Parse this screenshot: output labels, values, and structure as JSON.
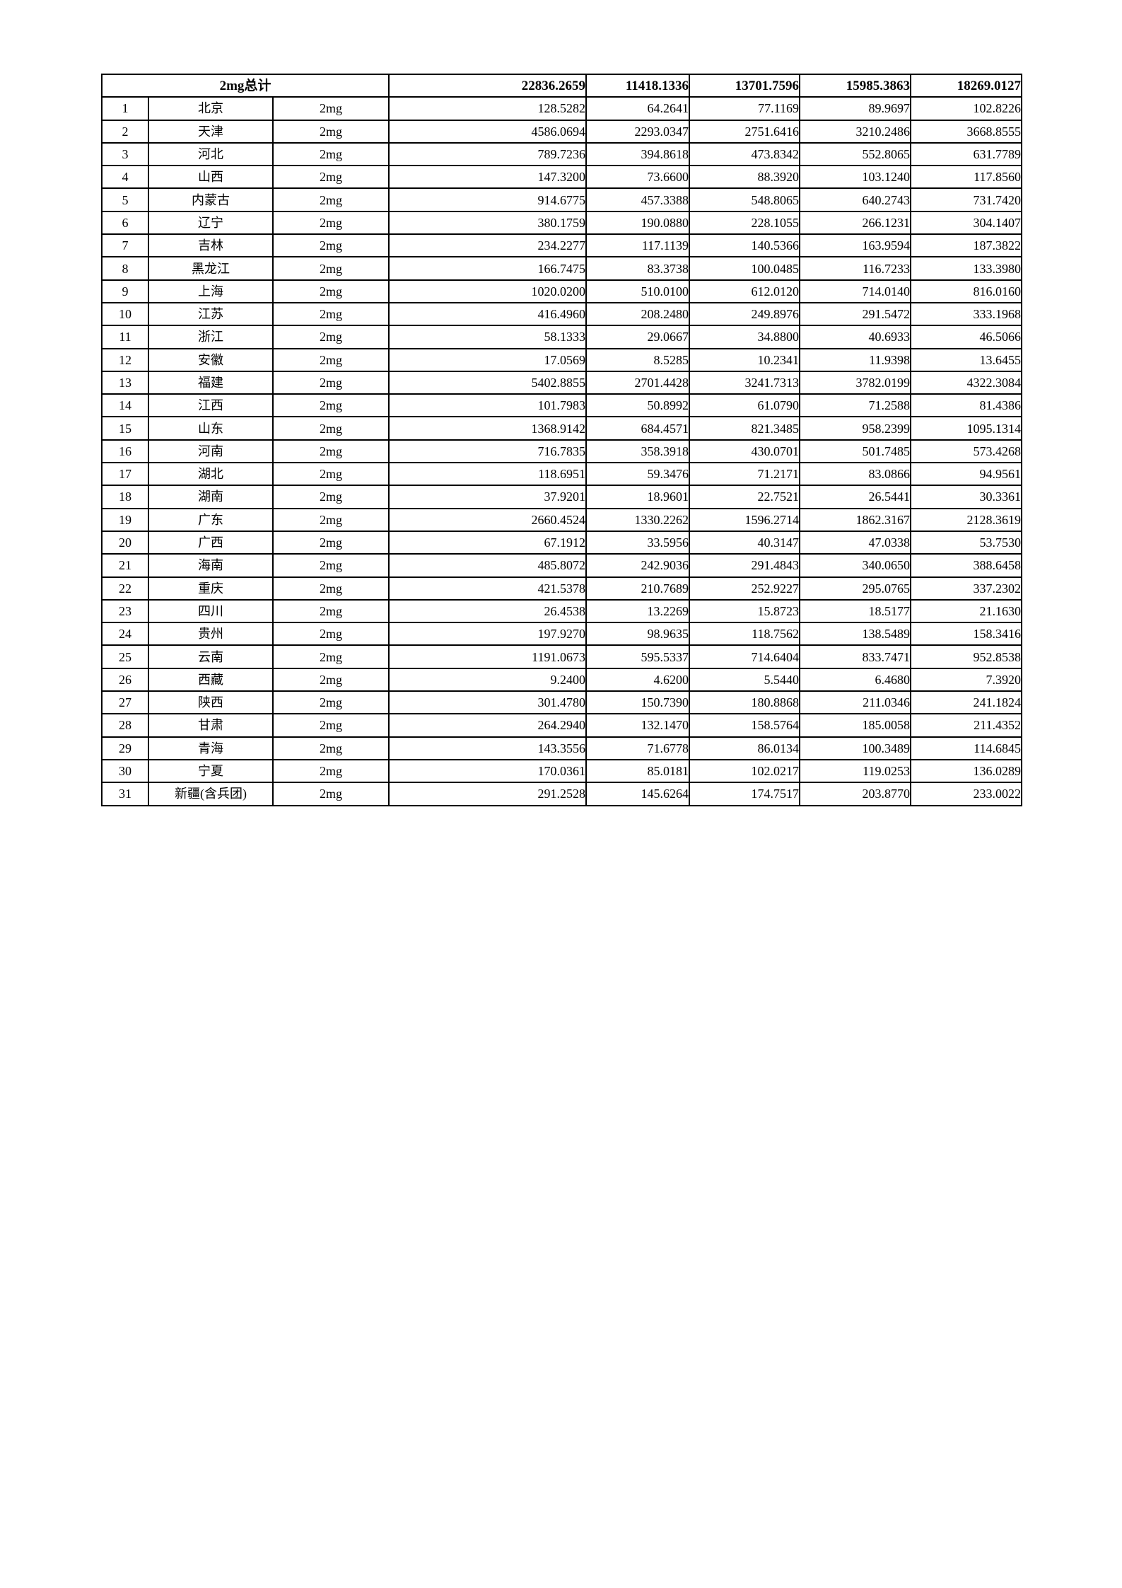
{
  "header": {
    "label": "2mg总计",
    "totals": [
      "22836.2659",
      "11418.1336",
      "13701.7596",
      "15985.3863",
      "18269.0127"
    ]
  },
  "table": {
    "rows": [
      {
        "index": "1",
        "province": "北京",
        "spec": "2mg",
        "values": [
          "128.5282",
          "64.2641",
          "77.1169",
          "89.9697",
          "102.8226"
        ]
      },
      {
        "index": "2",
        "province": "天津",
        "spec": "2mg",
        "values": [
          "4586.0694",
          "2293.0347",
          "2751.6416",
          "3210.2486",
          "3668.8555"
        ]
      },
      {
        "index": "3",
        "province": "河北",
        "spec": "2mg",
        "values": [
          "789.7236",
          "394.8618",
          "473.8342",
          "552.8065",
          "631.7789"
        ]
      },
      {
        "index": "4",
        "province": "山西",
        "spec": "2mg",
        "values": [
          "147.3200",
          "73.6600",
          "88.3920",
          "103.1240",
          "117.8560"
        ]
      },
      {
        "index": "5",
        "province": "内蒙古",
        "spec": "2mg",
        "values": [
          "914.6775",
          "457.3388",
          "548.8065",
          "640.2743",
          "731.7420"
        ]
      },
      {
        "index": "6",
        "province": "辽宁",
        "spec": "2mg",
        "values": [
          "380.1759",
          "190.0880",
          "228.1055",
          "266.1231",
          "304.1407"
        ]
      },
      {
        "index": "7",
        "province": "吉林",
        "spec": "2mg",
        "values": [
          "234.2277",
          "117.1139",
          "140.5366",
          "163.9594",
          "187.3822"
        ]
      },
      {
        "index": "8",
        "province": "黑龙江",
        "spec": "2mg",
        "values": [
          "166.7475",
          "83.3738",
          "100.0485",
          "116.7233",
          "133.3980"
        ]
      },
      {
        "index": "9",
        "province": "上海",
        "spec": "2mg",
        "values": [
          "1020.0200",
          "510.0100",
          "612.0120",
          "714.0140",
          "816.0160"
        ]
      },
      {
        "index": "10",
        "province": "江苏",
        "spec": "2mg",
        "values": [
          "416.4960",
          "208.2480",
          "249.8976",
          "291.5472",
          "333.1968"
        ]
      },
      {
        "index": "11",
        "province": "浙江",
        "spec": "2mg",
        "values": [
          "58.1333",
          "29.0667",
          "34.8800",
          "40.6933",
          "46.5066"
        ]
      },
      {
        "index": "12",
        "province": "安徽",
        "spec": "2mg",
        "values": [
          "17.0569",
          "8.5285",
          "10.2341",
          "11.9398",
          "13.6455"
        ]
      },
      {
        "index": "13",
        "province": "福建",
        "spec": "2mg",
        "values": [
          "5402.8855",
          "2701.4428",
          "3241.7313",
          "3782.0199",
          "4322.3084"
        ]
      },
      {
        "index": "14",
        "province": "江西",
        "spec": "2mg",
        "values": [
          "101.7983",
          "50.8992",
          "61.0790",
          "71.2588",
          "81.4386"
        ]
      },
      {
        "index": "15",
        "province": "山东",
        "spec": "2mg",
        "values": [
          "1368.9142",
          "684.4571",
          "821.3485",
          "958.2399",
          "1095.1314"
        ]
      },
      {
        "index": "16",
        "province": "河南",
        "spec": "2mg",
        "values": [
          "716.7835",
          "358.3918",
          "430.0701",
          "501.7485",
          "573.4268"
        ]
      },
      {
        "index": "17",
        "province": "湖北",
        "spec": "2mg",
        "values": [
          "118.6951",
          "59.3476",
          "71.2171",
          "83.0866",
          "94.9561"
        ]
      },
      {
        "index": "18",
        "province": "湖南",
        "spec": "2mg",
        "values": [
          "37.9201",
          "18.9601",
          "22.7521",
          "26.5441",
          "30.3361"
        ]
      },
      {
        "index": "19",
        "province": "广东",
        "spec": "2mg",
        "values": [
          "2660.4524",
          "1330.2262",
          "1596.2714",
          "1862.3167",
          "2128.3619"
        ]
      },
      {
        "index": "20",
        "province": "广西",
        "spec": "2mg",
        "values": [
          "67.1912",
          "33.5956",
          "40.3147",
          "47.0338",
          "53.7530"
        ]
      },
      {
        "index": "21",
        "province": "海南",
        "spec": "2mg",
        "values": [
          "485.8072",
          "242.9036",
          "291.4843",
          "340.0650",
          "388.6458"
        ]
      },
      {
        "index": "22",
        "province": "重庆",
        "spec": "2mg",
        "values": [
          "421.5378",
          "210.7689",
          "252.9227",
          "295.0765",
          "337.2302"
        ]
      },
      {
        "index": "23",
        "province": "四川",
        "spec": "2mg",
        "values": [
          "26.4538",
          "13.2269",
          "15.8723",
          "18.5177",
          "21.1630"
        ]
      },
      {
        "index": "24",
        "province": "贵州",
        "spec": "2mg",
        "values": [
          "197.9270",
          "98.9635",
          "118.7562",
          "138.5489",
          "158.3416"
        ]
      },
      {
        "index": "25",
        "province": "云南",
        "spec": "2mg",
        "values": [
          "1191.0673",
          "595.5337",
          "714.6404",
          "833.7471",
          "952.8538"
        ]
      },
      {
        "index": "26",
        "province": "西藏",
        "spec": "2mg",
        "values": [
          "9.2400",
          "4.6200",
          "5.5440",
          "6.4680",
          "7.3920"
        ]
      },
      {
        "index": "27",
        "province": "陕西",
        "spec": "2mg",
        "values": [
          "301.4780",
          "150.7390",
          "180.8868",
          "211.0346",
          "241.1824"
        ]
      },
      {
        "index": "28",
        "province": "甘肃",
        "spec": "2mg",
        "values": [
          "264.2940",
          "132.1470",
          "158.5764",
          "185.0058",
          "211.4352"
        ]
      },
      {
        "index": "29",
        "province": "青海",
        "spec": "2mg",
        "values": [
          "143.3556",
          "71.6778",
          "86.0134",
          "100.3489",
          "114.6845"
        ]
      },
      {
        "index": "30",
        "province": "宁夏",
        "spec": "2mg",
        "values": [
          "170.0361",
          "85.0181",
          "102.0217",
          "119.0253",
          "136.0289"
        ]
      },
      {
        "index": "31",
        "province": "新疆(含兵团)",
        "spec": "2mg",
        "values": [
          "291.2528",
          "145.6264",
          "174.7517",
          "203.8770",
          "233.0022"
        ]
      }
    ]
  }
}
